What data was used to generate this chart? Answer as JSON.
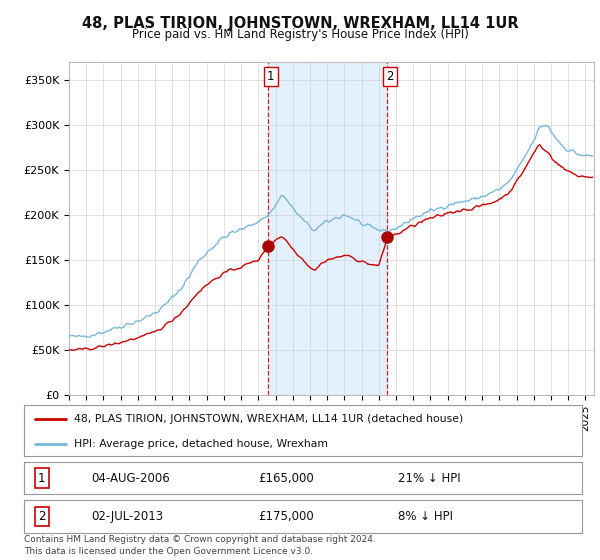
{
  "title": "48, PLAS TIRION, JOHNSTOWN, WREXHAM, LL14 1UR",
  "subtitle": "Price paid vs. HM Land Registry's House Price Index (HPI)",
  "ylabel_ticks": [
    "£0",
    "£50K",
    "£100K",
    "£150K",
    "£200K",
    "£250K",
    "£300K",
    "£350K"
  ],
  "ytick_values": [
    0,
    50000,
    100000,
    150000,
    200000,
    250000,
    300000,
    350000
  ],
  "ylim": [
    0,
    370000
  ],
  "xlim_start": 1995.0,
  "xlim_end": 2025.5,
  "sale1_date": 2006.58,
  "sale1_price": 165000,
  "sale1_label": "1",
  "sale2_date": 2013.5,
  "sale2_price": 175000,
  "sale2_label": "2",
  "hpi_color": "#7ab8d9",
  "price_color": "#cc0000",
  "marker_color": "#aa0000",
  "shading_color": "#ddeeff",
  "vline_color": "#cc0000",
  "legend1_text": "48, PLAS TIRION, JOHNSTOWN, WREXHAM, LL14 1UR (detached house)",
  "legend2_text": "HPI: Average price, detached house, Wrexham",
  "footer": "Contains HM Land Registry data © Crown copyright and database right 2024.\nThis data is licensed under the Open Government Licence v3.0.",
  "background_color": "#ffffff",
  "grid_color": "#cccccc",
  "hpi_anchors": [
    [
      1995.0,
      65000
    ],
    [
      1995.5,
      64000
    ],
    [
      1996.0,
      66000
    ],
    [
      1996.5,
      67500
    ],
    [
      1997.0,
      70000
    ],
    [
      1997.5,
      73000
    ],
    [
      1998.0,
      76000
    ],
    [
      1998.5,
      79000
    ],
    [
      1999.0,
      82000
    ],
    [
      1999.5,
      86000
    ],
    [
      2000.0,
      91000
    ],
    [
      2000.5,
      98000
    ],
    [
      2001.0,
      108000
    ],
    [
      2001.5,
      118000
    ],
    [
      2002.0,
      132000
    ],
    [
      2002.5,
      148000
    ],
    [
      2003.0,
      158000
    ],
    [
      2003.5,
      167000
    ],
    [
      2004.0,
      175000
    ],
    [
      2004.5,
      180000
    ],
    [
      2005.0,
      183000
    ],
    [
      2005.5,
      188000
    ],
    [
      2006.0,
      193000
    ],
    [
      2006.5,
      198000
    ],
    [
      2007.0,
      210000
    ],
    [
      2007.3,
      222000
    ],
    [
      2007.6,
      218000
    ],
    [
      2008.0,
      207000
    ],
    [
      2008.5,
      196000
    ],
    [
      2009.0,
      186000
    ],
    [
      2009.3,
      183000
    ],
    [
      2009.6,
      187000
    ],
    [
      2010.0,
      192000
    ],
    [
      2010.5,
      196000
    ],
    [
      2011.0,
      200000
    ],
    [
      2011.5,
      196000
    ],
    [
      2012.0,
      190000
    ],
    [
      2012.5,
      185000
    ],
    [
      2013.0,
      183000
    ],
    [
      2013.5,
      182000
    ],
    [
      2014.0,
      185000
    ],
    [
      2014.5,
      190000
    ],
    [
      2015.0,
      196000
    ],
    [
      2015.5,
      200000
    ],
    [
      2016.0,
      204000
    ],
    [
      2016.5,
      207000
    ],
    [
      2017.0,
      211000
    ],
    [
      2017.5,
      213000
    ],
    [
      2018.0,
      215000
    ],
    [
      2018.5,
      217000
    ],
    [
      2019.0,
      220000
    ],
    [
      2019.5,
      224000
    ],
    [
      2020.0,
      228000
    ],
    [
      2020.5,
      235000
    ],
    [
      2021.0,
      248000
    ],
    [
      2021.5,
      265000
    ],
    [
      2022.0,
      282000
    ],
    [
      2022.3,
      295000
    ],
    [
      2022.6,
      300000
    ],
    [
      2022.9,
      297000
    ],
    [
      2023.0,
      293000
    ],
    [
      2023.3,
      285000
    ],
    [
      2023.6,
      278000
    ],
    [
      2024.0,
      272000
    ],
    [
      2024.5,
      268000
    ],
    [
      2025.0,
      265000
    ]
  ],
  "price_anchors_before_sale1": [
    [
      1995.0,
      50000
    ],
    [
      1995.5,
      49500
    ],
    [
      1996.0,
      51000
    ],
    [
      1996.5,
      52000
    ],
    [
      1997.0,
      54000
    ],
    [
      1997.5,
      56000
    ],
    [
      1998.0,
      58000
    ],
    [
      1998.5,
      61000
    ],
    [
      1999.0,
      63000
    ],
    [
      1999.5,
      66000
    ],
    [
      2000.0,
      70000
    ],
    [
      2000.5,
      76000
    ],
    [
      2001.0,
      83000
    ],
    [
      2001.5,
      91000
    ],
    [
      2002.0,
      102000
    ],
    [
      2002.5,
      114000
    ],
    [
      2003.0,
      122000
    ],
    [
      2003.5,
      129000
    ],
    [
      2004.0,
      135000
    ],
    [
      2004.5,
      139000
    ],
    [
      2005.0,
      142000
    ],
    [
      2005.5,
      146000
    ],
    [
      2006.0,
      150000
    ],
    [
      2006.4,
      160000
    ],
    [
      2006.58,
      165000
    ]
  ],
  "price_anchors_after_sale1": [
    [
      2006.58,
      165000
    ],
    [
      2007.0,
      172000
    ],
    [
      2007.3,
      176000
    ],
    [
      2007.6,
      172000
    ],
    [
      2008.0,
      162000
    ],
    [
      2008.5,
      152000
    ],
    [
      2009.0,
      142000
    ],
    [
      2009.3,
      138000
    ],
    [
      2009.6,
      145000
    ],
    [
      2010.0,
      150000
    ],
    [
      2010.5,
      152000
    ],
    [
      2011.0,
      155000
    ],
    [
      2011.5,
      152000
    ],
    [
      2012.0,
      148000
    ],
    [
      2012.5,
      145000
    ],
    [
      2013.0,
      143000
    ],
    [
      2013.5,
      175000
    ]
  ],
  "price_anchors_after_sale2": [
    [
      2013.5,
      175000
    ],
    [
      2014.0,
      178000
    ],
    [
      2014.5,
      183000
    ],
    [
      2015.0,
      188000
    ],
    [
      2015.5,
      192000
    ],
    [
      2016.0,
      196000
    ],
    [
      2016.5,
      198000
    ],
    [
      2017.0,
      202000
    ],
    [
      2017.5,
      204000
    ],
    [
      2018.0,
      206000
    ],
    [
      2018.5,
      207000
    ],
    [
      2019.0,
      210000
    ],
    [
      2019.5,
      213000
    ],
    [
      2020.0,
      217000
    ],
    [
      2020.5,
      224000
    ],
    [
      2021.0,
      236000
    ],
    [
      2021.5,
      252000
    ],
    [
      2022.0,
      268000
    ],
    [
      2022.3,
      278000
    ],
    [
      2022.6,
      272000
    ],
    [
      2022.9,
      268000
    ],
    [
      2023.0,
      265000
    ],
    [
      2023.3,
      258000
    ],
    [
      2023.6,
      253000
    ],
    [
      2024.0,
      248000
    ],
    [
      2024.5,
      244000
    ],
    [
      2025.0,
      242000
    ]
  ]
}
